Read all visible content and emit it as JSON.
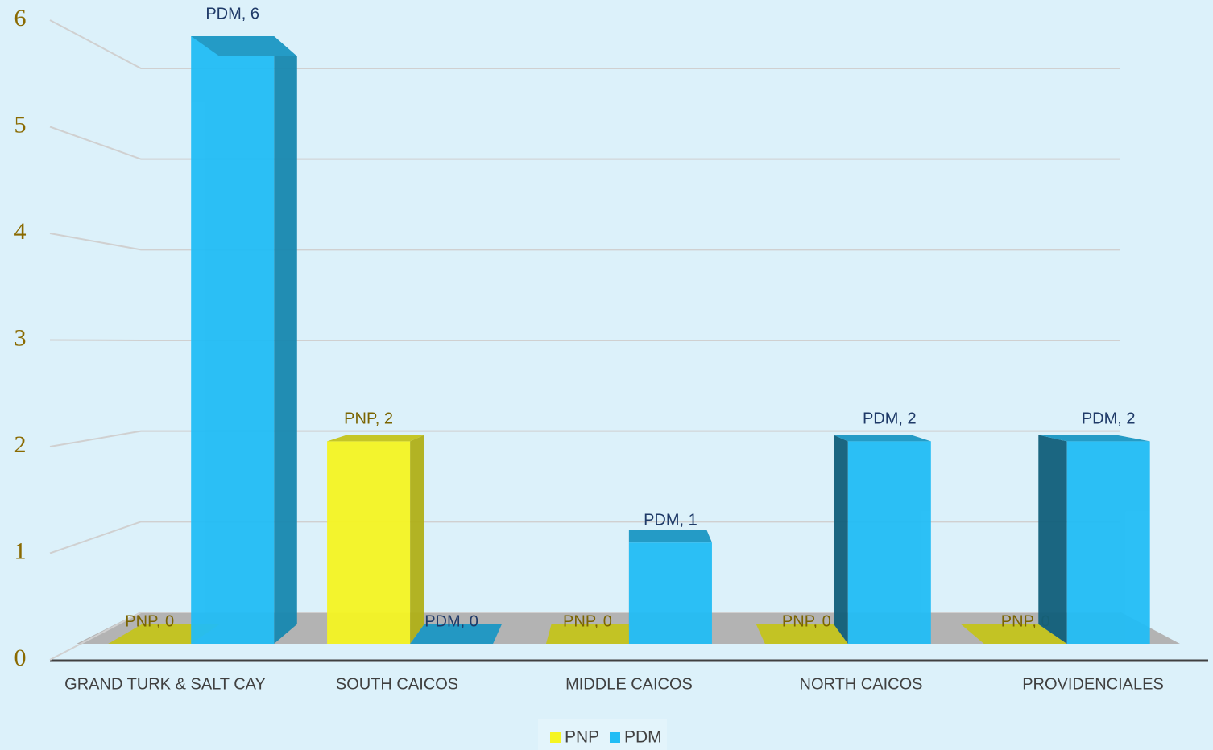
{
  "chart_data": {
    "type": "bar3d",
    "categories": [
      "GRAND TURK & SALT CAY",
      "SOUTH CAICOS",
      "MIDDLE CAICOS",
      "NORTH CAICOS",
      "PROVIDENCIALES"
    ],
    "series": [
      {
        "name": "PNP",
        "color": "#f5f523",
        "values": [
          0,
          2,
          0,
          0,
          0
        ],
        "value_labels": [
          "PNP, 0",
          "PNP, 2",
          "PNP, 0",
          "PNP, 0",
          "PNP, 0"
        ]
      },
      {
        "name": "PDM",
        "color": "#22bdf5",
        "values": [
          6,
          0,
          1,
          2,
          2
        ],
        "value_labels": [
          "PDM, 6",
          "PDM, 0",
          "PDM, 1",
          "PDM, 2",
          "PDM, 2"
        ]
      }
    ],
    "ylim": [
      0,
      6
    ],
    "yticks": [
      0,
      1,
      2,
      3,
      4,
      5,
      6
    ],
    "grid": true,
    "legend": "bottom"
  }
}
